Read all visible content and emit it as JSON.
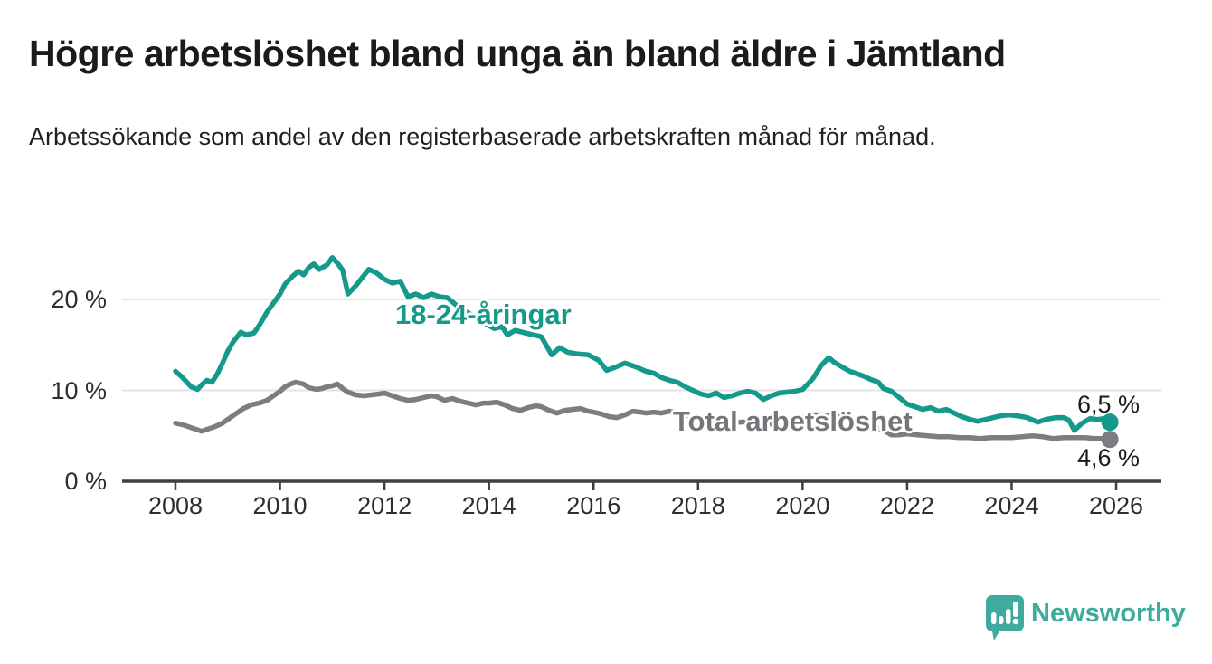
{
  "header": {
    "title": "Högre arbetslöshet bland unga än bland äldre i Jämtland",
    "subtitle": "Arbetssökande som andel av den registerbaserade arbetskraften månad för månad."
  },
  "chart_data": {
    "type": "line",
    "unit": "%",
    "grid": "horizontal-only",
    "legend_position": "inline-on-lines",
    "xlim": [
      2007.5,
      2026.6
    ],
    "ylim": [
      0,
      26
    ],
    "x_ticks": [
      2008,
      2010,
      2012,
      2014,
      2016,
      2018,
      2020,
      2022,
      2024,
      2026
    ],
    "y_ticks": [
      {
        "value": 0,
        "label": "0 %"
      },
      {
        "value": 10,
        "label": "10 %"
      },
      {
        "value": 20,
        "label": "20 %"
      }
    ],
    "series": [
      {
        "name": "18-24-åringar",
        "color": "#15998a",
        "end_label": "6,5 %",
        "end_value": 6.5,
        "points": [
          [
            2008.0,
            12.1
          ],
          [
            2008.1,
            11.6
          ],
          [
            2008.2,
            11.0
          ],
          [
            2008.3,
            10.4
          ],
          [
            2008.42,
            10.1
          ],
          [
            2008.5,
            10.6
          ],
          [
            2008.6,
            11.1
          ],
          [
            2008.7,
            10.9
          ],
          [
            2008.8,
            11.8
          ],
          [
            2008.9,
            13.0
          ],
          [
            2009.0,
            14.3
          ],
          [
            2009.1,
            15.3
          ],
          [
            2009.25,
            16.4
          ],
          [
            2009.35,
            16.1
          ],
          [
            2009.5,
            16.3
          ],
          [
            2009.6,
            17.1
          ],
          [
            2009.75,
            18.6
          ],
          [
            2009.9,
            19.8
          ],
          [
            2010.0,
            20.6
          ],
          [
            2010.1,
            21.7
          ],
          [
            2010.25,
            22.6
          ],
          [
            2010.35,
            23.1
          ],
          [
            2010.45,
            22.7
          ],
          [
            2010.55,
            23.5
          ],
          [
            2010.65,
            23.9
          ],
          [
            2010.75,
            23.3
          ],
          [
            2010.9,
            23.8
          ],
          [
            2011.0,
            24.6
          ],
          [
            2011.1,
            24.0
          ],
          [
            2011.2,
            23.2
          ],
          [
            2011.3,
            20.6
          ],
          [
            2011.45,
            21.5
          ],
          [
            2011.6,
            22.6
          ],
          [
            2011.7,
            23.3
          ],
          [
            2011.85,
            22.9
          ],
          [
            2012.0,
            22.2
          ],
          [
            2012.15,
            21.8
          ],
          [
            2012.3,
            22.0
          ],
          [
            2012.45,
            20.3
          ],
          [
            2012.6,
            20.6
          ],
          [
            2012.75,
            20.2
          ],
          [
            2012.9,
            20.6
          ],
          [
            2013.05,
            20.3
          ],
          [
            2013.2,
            20.2
          ],
          [
            2013.45,
            19.0
          ],
          [
            2013.7,
            18.2
          ],
          [
            2013.9,
            17.4
          ],
          [
            2014.1,
            16.8
          ],
          [
            2014.25,
            17.0
          ],
          [
            2014.35,
            16.1
          ],
          [
            2014.5,
            16.6
          ],
          [
            2014.7,
            16.3
          ],
          [
            2014.85,
            16.1
          ],
          [
            2015.0,
            15.9
          ],
          [
            2015.2,
            13.9
          ],
          [
            2015.35,
            14.7
          ],
          [
            2015.5,
            14.2
          ],
          [
            2015.7,
            14.0
          ],
          [
            2015.9,
            13.9
          ],
          [
            2016.1,
            13.3
          ],
          [
            2016.25,
            12.2
          ],
          [
            2016.4,
            12.5
          ],
          [
            2016.6,
            13.0
          ],
          [
            2016.8,
            12.6
          ],
          [
            2017.0,
            12.1
          ],
          [
            2017.15,
            11.9
          ],
          [
            2017.3,
            11.4
          ],
          [
            2017.45,
            11.1
          ],
          [
            2017.6,
            10.9
          ],
          [
            2017.75,
            10.4
          ],
          [
            2017.9,
            10.0
          ],
          [
            2018.05,
            9.6
          ],
          [
            2018.2,
            9.4
          ],
          [
            2018.35,
            9.7
          ],
          [
            2018.5,
            9.2
          ],
          [
            2018.65,
            9.4
          ],
          [
            2018.8,
            9.7
          ],
          [
            2018.95,
            9.9
          ],
          [
            2019.1,
            9.7
          ],
          [
            2019.25,
            9.0
          ],
          [
            2019.4,
            9.4
          ],
          [
            2019.55,
            9.7
          ],
          [
            2019.7,
            9.8
          ],
          [
            2019.85,
            9.9
          ],
          [
            2020.0,
            10.1
          ],
          [
            2020.2,
            11.3
          ],
          [
            2020.35,
            12.7
          ],
          [
            2020.5,
            13.6
          ],
          [
            2020.6,
            13.1
          ],
          [
            2020.75,
            12.6
          ],
          [
            2020.9,
            12.1
          ],
          [
            2021.0,
            11.9
          ],
          [
            2021.15,
            11.6
          ],
          [
            2021.3,
            11.2
          ],
          [
            2021.45,
            10.9
          ],
          [
            2021.55,
            10.2
          ],
          [
            2021.7,
            9.9
          ],
          [
            2021.85,
            9.2
          ],
          [
            2022.0,
            8.5
          ],
          [
            2022.15,
            8.2
          ],
          [
            2022.3,
            7.9
          ],
          [
            2022.45,
            8.1
          ],
          [
            2022.6,
            7.7
          ],
          [
            2022.75,
            7.9
          ],
          [
            2022.9,
            7.5
          ],
          [
            2023.05,
            7.1
          ],
          [
            2023.2,
            6.8
          ],
          [
            2023.35,
            6.6
          ],
          [
            2023.5,
            6.8
          ],
          [
            2023.65,
            7.0
          ],
          [
            2023.8,
            7.2
          ],
          [
            2023.95,
            7.3
          ],
          [
            2024.1,
            7.2
          ],
          [
            2024.3,
            7.0
          ],
          [
            2024.5,
            6.5
          ],
          [
            2024.65,
            6.8
          ],
          [
            2024.85,
            7.0
          ],
          [
            2025.0,
            7.0
          ],
          [
            2025.1,
            6.7
          ],
          [
            2025.2,
            5.6
          ],
          [
            2025.35,
            6.4
          ],
          [
            2025.5,
            6.9
          ],
          [
            2025.65,
            6.8
          ],
          [
            2025.75,
            6.9
          ],
          [
            2025.88,
            6.5
          ]
        ]
      },
      {
        "name": "Total arbetslöshet",
        "color": "#7d7d81",
        "end_label": "4,6 %",
        "end_value": 4.6,
        "points": [
          [
            2008.0,
            6.4
          ],
          [
            2008.15,
            6.2
          ],
          [
            2008.25,
            6.0
          ],
          [
            2008.4,
            5.7
          ],
          [
            2008.5,
            5.5
          ],
          [
            2008.6,
            5.7
          ],
          [
            2008.75,
            6.0
          ],
          [
            2008.9,
            6.4
          ],
          [
            2009.0,
            6.8
          ],
          [
            2009.15,
            7.4
          ],
          [
            2009.3,
            8.0
          ],
          [
            2009.45,
            8.4
          ],
          [
            2009.6,
            8.6
          ],
          [
            2009.75,
            8.9
          ],
          [
            2009.9,
            9.5
          ],
          [
            2010.0,
            9.9
          ],
          [
            2010.1,
            10.4
          ],
          [
            2010.2,
            10.7
          ],
          [
            2010.3,
            10.9
          ],
          [
            2010.45,
            10.7
          ],
          [
            2010.55,
            10.3
          ],
          [
            2010.7,
            10.1
          ],
          [
            2010.8,
            10.2
          ],
          [
            2010.9,
            10.4
          ],
          [
            2011.0,
            10.5
          ],
          [
            2011.1,
            10.7
          ],
          [
            2011.2,
            10.2
          ],
          [
            2011.3,
            9.8
          ],
          [
            2011.45,
            9.5
          ],
          [
            2011.6,
            9.4
          ],
          [
            2011.75,
            9.5
          ],
          [
            2011.9,
            9.6
          ],
          [
            2012.0,
            9.7
          ],
          [
            2012.15,
            9.4
          ],
          [
            2012.3,
            9.1
          ],
          [
            2012.45,
            8.9
          ],
          [
            2012.6,
            9.0
          ],
          [
            2012.75,
            9.2
          ],
          [
            2012.9,
            9.4
          ],
          [
            2013.0,
            9.3
          ],
          [
            2013.15,
            8.9
          ],
          [
            2013.3,
            9.1
          ],
          [
            2013.45,
            8.8
          ],
          [
            2013.6,
            8.6
          ],
          [
            2013.75,
            8.4
          ],
          [
            2013.9,
            8.6
          ],
          [
            2014.0,
            8.6
          ],
          [
            2014.15,
            8.7
          ],
          [
            2014.3,
            8.4
          ],
          [
            2014.45,
            8.0
          ],
          [
            2014.6,
            7.8
          ],
          [
            2014.75,
            8.1
          ],
          [
            2014.9,
            8.3
          ],
          [
            2015.0,
            8.2
          ],
          [
            2015.15,
            7.8
          ],
          [
            2015.3,
            7.5
          ],
          [
            2015.45,
            7.8
          ],
          [
            2015.6,
            7.9
          ],
          [
            2015.75,
            8.0
          ],
          [
            2015.9,
            7.7
          ],
          [
            2016.0,
            7.6
          ],
          [
            2016.15,
            7.4
          ],
          [
            2016.3,
            7.1
          ],
          [
            2016.45,
            7.0
          ],
          [
            2016.6,
            7.3
          ],
          [
            2016.75,
            7.7
          ],
          [
            2016.9,
            7.6
          ],
          [
            2017.0,
            7.5
          ],
          [
            2017.15,
            7.6
          ],
          [
            2017.3,
            7.5
          ],
          [
            2017.45,
            7.7
          ],
          [
            2017.6,
            7.6
          ],
          [
            2017.75,
            7.3
          ],
          [
            2017.9,
            7.1
          ],
          [
            2018.0,
            7.0
          ],
          [
            2018.2,
            6.9
          ],
          [
            2018.4,
            6.7
          ],
          [
            2018.6,
            6.6
          ],
          [
            2018.8,
            6.5
          ],
          [
            2019.0,
            6.6
          ],
          [
            2019.2,
            6.4
          ],
          [
            2019.4,
            6.3
          ],
          [
            2019.6,
            6.5
          ],
          [
            2019.8,
            6.8
          ],
          [
            2020.0,
            7.0
          ],
          [
            2020.2,
            7.3
          ],
          [
            2020.4,
            7.3
          ],
          [
            2020.6,
            7.2
          ],
          [
            2020.8,
            7.0
          ],
          [
            2021.0,
            6.7
          ],
          [
            2021.2,
            6.4
          ],
          [
            2021.4,
            6.0
          ],
          [
            2021.55,
            5.6
          ],
          [
            2021.7,
            5.1
          ],
          [
            2021.85,
            5.1
          ],
          [
            2022.0,
            5.2
          ],
          [
            2022.2,
            5.1
          ],
          [
            2022.4,
            5.0
          ],
          [
            2022.6,
            4.9
          ],
          [
            2022.8,
            4.9
          ],
          [
            2023.0,
            4.8
          ],
          [
            2023.2,
            4.8
          ],
          [
            2023.4,
            4.7
          ],
          [
            2023.6,
            4.8
          ],
          [
            2023.8,
            4.8
          ],
          [
            2024.0,
            4.8
          ],
          [
            2024.2,
            4.9
          ],
          [
            2024.4,
            5.0
          ],
          [
            2024.6,
            4.9
          ],
          [
            2024.8,
            4.7
          ],
          [
            2025.0,
            4.8
          ],
          [
            2025.2,
            4.8
          ],
          [
            2025.4,
            4.8
          ],
          [
            2025.6,
            4.7
          ],
          [
            2025.75,
            4.7
          ],
          [
            2025.88,
            4.6
          ]
        ]
      }
    ]
  },
  "branding": {
    "logo_text": "Newsworthy",
    "logo_color": "#3faa9e"
  },
  "colors": {
    "accent_teal": "#15998a",
    "line_gray": "#7d7d81",
    "gridline": "#e3e3e3",
    "axis": "#3f3f3f"
  }
}
